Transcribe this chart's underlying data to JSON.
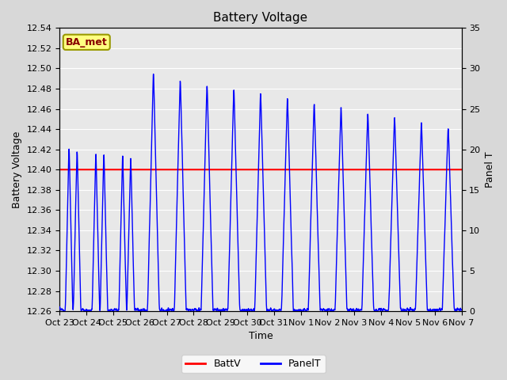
{
  "title": "Battery Voltage",
  "xlabel": "Time",
  "ylabel_left": "Battery Voltage",
  "ylabel_right": "Panel T",
  "battv_value": 12.4,
  "ylim_left": [
    12.26,
    12.54
  ],
  "ylim_right": [
    0,
    35
  ],
  "yticks_left": [
    12.26,
    12.28,
    12.3,
    12.32,
    12.34,
    12.36,
    12.38,
    12.4,
    12.42,
    12.44,
    12.46,
    12.48,
    12.5,
    12.52,
    12.54
  ],
  "yticks_right": [
    0,
    5,
    10,
    15,
    20,
    25,
    30,
    35
  ],
  "xtick_labels": [
    "Oct 23",
    "Oct 24",
    "Oct 25",
    "Oct 26",
    "Oct 27",
    "Oct 28",
    "Oct 29",
    "Oct 30",
    "Oct 31",
    "Nov 1",
    "Nov 2",
    "Nov 3",
    "Nov 4",
    "Nov 5",
    "Nov 6",
    "Nov 7"
  ],
  "battv_color": "#ff0000",
  "panelt_color": "#0000ff",
  "fig_bg_color": "#d8d8d8",
  "plot_bg_color": "#e8e8e8",
  "grid_color": "#ffffff",
  "annotation_text": "BA_met",
  "annotation_bg": "#ffff80",
  "annotation_border": "#999900",
  "annotation_text_color": "#880000",
  "title_fontsize": 11,
  "label_fontsize": 9,
  "tick_fontsize": 8,
  "legend_fontsize": 9
}
